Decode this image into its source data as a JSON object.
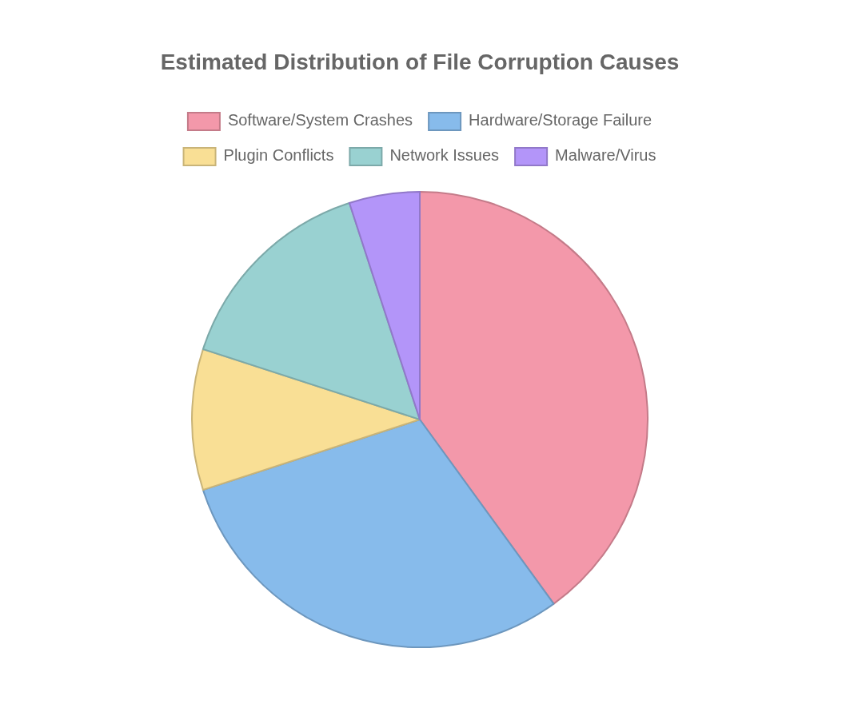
{
  "chart_data": {
    "type": "pie",
    "title": "Estimated Distribution of File Corruption Causes",
    "categories": [
      "Software/System Crashes",
      "Hardware/Storage Failure",
      "Plugin Conflicts",
      "Network Issues",
      "Malware/Virus"
    ],
    "values": [
      40,
      30,
      10,
      15,
      5
    ],
    "colors": [
      "#f398aa",
      "#87bbeb",
      "#f9df95",
      "#99d1d1",
      "#b395f9"
    ],
    "legend": "top"
  }
}
